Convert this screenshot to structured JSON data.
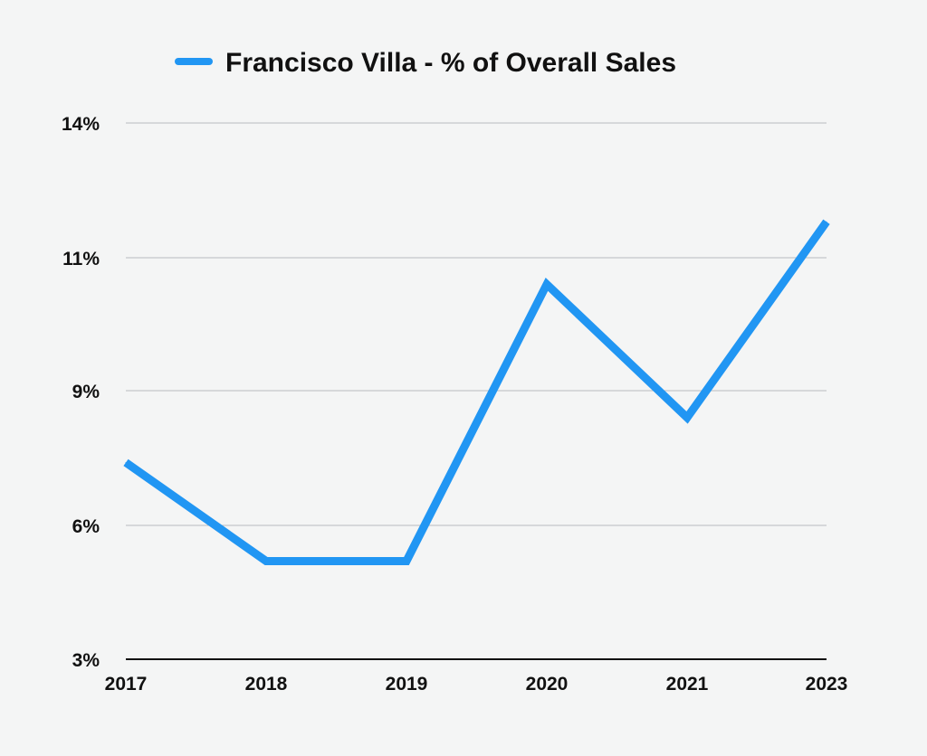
{
  "chart_data": {
    "type": "line",
    "title": "",
    "xlabel": "",
    "ylabel": "",
    "categories": [
      "2017",
      "2018",
      "2019",
      "2020",
      "2021",
      "2023"
    ],
    "series": [
      {
        "name": "Francisco Villa - % of Overall Sales",
        "values": [
          7.4,
          5.2,
          5.2,
          10.6,
          8.4,
          11.8
        ],
        "color": "#2196f3"
      }
    ],
    "y_ticks": [
      3,
      6,
      9,
      11,
      14
    ],
    "y_tick_labels": [
      "3%",
      "6%",
      "9%",
      "11%",
      "14%"
    ],
    "ylim": [
      3,
      14
    ],
    "grid": true,
    "legend_position": "top-center"
  }
}
